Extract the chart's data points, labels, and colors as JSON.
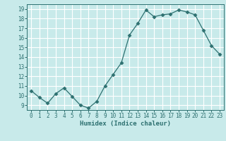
{
  "x": [
    0,
    1,
    2,
    3,
    4,
    5,
    6,
    7,
    8,
    9,
    10,
    11,
    12,
    13,
    14,
    15,
    16,
    17,
    18,
    19,
    20,
    21,
    22,
    23
  ],
  "y": [
    10.5,
    9.8,
    9.2,
    10.2,
    10.8,
    9.9,
    9.0,
    8.7,
    9.4,
    11.0,
    12.2,
    13.4,
    16.3,
    17.5,
    18.9,
    18.2,
    18.4,
    18.5,
    18.9,
    18.7,
    18.4,
    16.8,
    15.2,
    14.3
  ],
  "line_color": "#2d7070",
  "marker": "D",
  "marker_size": 2.5,
  "bg_color": "#c8eaea",
  "grid_color": "#ffffff",
  "xlabel": "Humidex (Indice chaleur)",
  "ylim": [
    8.5,
    19.5
  ],
  "yticks": [
    9,
    10,
    11,
    12,
    13,
    14,
    15,
    16,
    17,
    18,
    19
  ],
  "xticks": [
    0,
    1,
    2,
    3,
    4,
    5,
    6,
    7,
    8,
    9,
    10,
    11,
    12,
    13,
    14,
    15,
    16,
    17,
    18,
    19,
    20,
    21,
    22,
    23
  ],
  "xlim": [
    -0.5,
    23.5
  ],
  "tick_color": "#2d7070",
  "label_fontsize": 6.5,
  "tick_fontsize": 5.5,
  "spine_color": "#2d7070"
}
